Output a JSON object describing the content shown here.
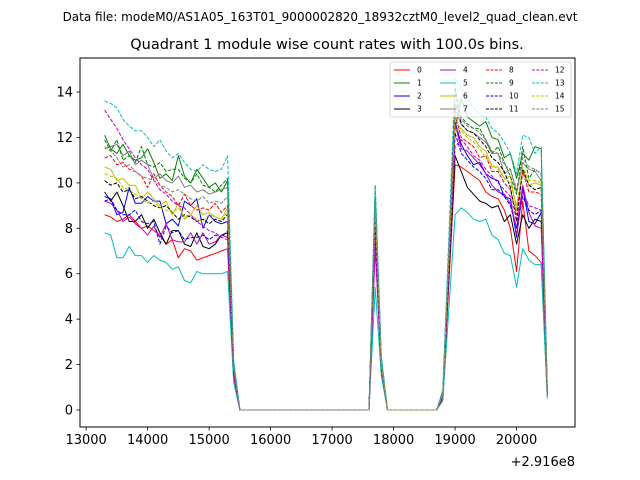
{
  "chart_data": {
    "type": "line",
    "suptitle": "Data file: modeM0/AS1A05_163T01_9000002820_18932cztM0_level2_quad_clean.evt",
    "title": "Quadrant 1 module wise count rates with 100.0s bins.",
    "xlabel": "",
    "ylabel": "",
    "offset_text": "+2.916e8",
    "xlim": [
      12900,
      20950
    ],
    "ylim": [
      -0.75,
      15.5
    ],
    "xticks": [
      13000,
      14000,
      15000,
      16000,
      17000,
      18000,
      19000,
      20000
    ],
    "xtick_labels": [
      "13000",
      "14000",
      "15000",
      "16000",
      "17000",
      "18000",
      "19000",
      "20000"
    ],
    "yticks": [
      0,
      2,
      4,
      6,
      8,
      10,
      12,
      14
    ],
    "ytick_labels": [
      "0",
      "2",
      "4",
      "6",
      "8",
      "10",
      "12",
      "14"
    ],
    "legend": {
      "location": "top-right",
      "columns": 4
    },
    "segments": [
      {
        "start": 13300,
        "n": 21
      },
      {
        "start": 15400,
        "n": 21
      },
      {
        "start": 17600,
        "n": 3
      },
      {
        "start": 17900,
        "n": 10
      },
      {
        "start": 19000,
        "n": 17
      }
    ],
    "series": [
      {
        "name": "0",
        "color": "#ff0000",
        "dash": "solid",
        "values": [
          8.6,
          8.5,
          8.3,
          8.4,
          8.6,
          8.3,
          8.0,
          8.1,
          7.9,
          7.7,
          7.3,
          7.5,
          6.7,
          7.1,
          7.0,
          6.6,
          6.7,
          6.8,
          6.9,
          7.0,
          7.1,
          1.5,
          0,
          0,
          0,
          0,
          0,
          0,
          0,
          0,
          0,
          0,
          0,
          0,
          0,
          0,
          0,
          0,
          0,
          0,
          0,
          0,
          0,
          7.6,
          1.8,
          0,
          0,
          0,
          0,
          0,
          0,
          0,
          0,
          0,
          0.5,
          10.8,
          10.7,
          10.5,
          10.3,
          10.1,
          9.6,
          9.4,
          9.3,
          8.8,
          8.0,
          6.1,
          9.2,
          7.0,
          6.8,
          6.5,
          0.6
        ]
      },
      {
        "name": "1",
        "color": "#008000",
        "dash": "solid",
        "values": [
          12.1,
          11.5,
          11.3,
          11.7,
          11.2,
          11.0,
          11.1,
          11.5,
          10.9,
          10.2,
          10.4,
          10.1,
          11.2,
          10.3,
          10.0,
          10.6,
          10.2,
          9.8,
          10.0,
          9.6,
          10.1,
          2.0,
          0,
          0,
          0,
          0,
          0,
          0,
          0,
          0,
          0,
          0,
          0,
          0,
          0,
          0,
          0,
          0,
          0,
          0,
          0,
          0,
          0,
          9.4,
          2.2,
          0,
          0,
          0,
          0,
          0,
          0,
          0,
          0,
          0,
          0.8,
          12.4,
          13.7,
          12.9,
          12.7,
          12.5,
          12.7,
          12.0,
          11.9,
          11.1,
          11.3,
          10.2,
          11.3,
          11.0,
          11.6,
          11.5,
          0.9
        ]
      },
      {
        "name": "2",
        "color": "#0000ff",
        "dash": "solid",
        "values": [
          9.4,
          9.3,
          8.6,
          8.7,
          9.8,
          9.1,
          9.1,
          9.4,
          9.2,
          9.2,
          8.2,
          8.4,
          8.1,
          9.2,
          9.0,
          9.3,
          8.0,
          8.6,
          8.3,
          8.2,
          8.3,
          1.7,
          0,
          0,
          0,
          0,
          0,
          0,
          0,
          0,
          0,
          0,
          0,
          0,
          0,
          0,
          0,
          0,
          0,
          0,
          0,
          0,
          0,
          8.4,
          2.0,
          0,
          0,
          0,
          0,
          0,
          0,
          0,
          0,
          0,
          0.6,
          12.7,
          11.7,
          11.2,
          10.8,
          10.9,
          10.4,
          10.2,
          10.1,
          9.4,
          9.3,
          7.6,
          9.8,
          8.3,
          8.2,
          8.7,
          0.8
        ]
      },
      {
        "name": "3",
        "color": "#000000",
        "dash": "solid",
        "values": [
          9.6,
          9.2,
          9.6,
          9.0,
          8.3,
          8.3,
          8.6,
          8.0,
          8.4,
          7.8,
          7.3,
          7.9,
          7.9,
          7.3,
          7.2,
          7.8,
          7.2,
          7.1,
          7.3,
          7.7,
          7.8,
          1.6,
          0,
          0,
          0,
          0,
          0,
          0,
          0,
          0,
          0,
          0,
          0,
          0,
          0,
          0,
          0,
          0,
          0,
          0,
          0,
          0,
          0,
          7.8,
          1.9,
          0,
          0,
          0,
          0,
          0,
          0,
          0,
          0,
          0,
          0.6,
          11.2,
          10.5,
          9.8,
          9.5,
          9.2,
          9.1,
          8.9,
          9.0,
          8.3,
          8.6,
          7.3,
          8.6,
          8.0,
          8.4,
          8.3,
          0.7
        ]
      },
      {
        "name": "4",
        "color": "#bf00bf",
        "dash": "solid",
        "values": [
          9.2,
          9.1,
          8.8,
          8.3,
          8.5,
          8.2,
          8.0,
          7.7,
          8.1,
          7.6,
          8.2,
          7.5,
          7.4,
          7.4,
          7.8,
          7.3,
          7.8,
          7.3,
          7.4,
          7.7,
          7.6,
          1.5,
          0,
          0,
          0,
          0,
          0,
          0,
          0,
          0,
          0,
          0,
          0,
          0,
          0,
          0,
          0,
          0,
          0,
          0,
          0,
          0,
          0,
          7.1,
          1.8,
          0,
          0,
          0,
          0,
          0,
          0,
          0,
          0,
          0,
          0.6,
          12.6,
          11.5,
          11.4,
          11.1,
          10.8,
          10.4,
          9.9,
          9.6,
          9.5,
          9.1,
          8.0,
          9.9,
          8.7,
          8.1,
          8.0,
          0.8
        ]
      },
      {
        "name": "5",
        "color": "#00bfbf",
        "dash": "solid",
        "values": [
          7.8,
          7.7,
          6.7,
          6.7,
          7.2,
          6.8,
          6.8,
          6.5,
          6.8,
          6.6,
          6.5,
          6.2,
          6.3,
          5.7,
          5.6,
          6.1,
          6.0,
          6.0,
          6.0,
          6.0,
          6.1,
          1.2,
          0,
          0,
          0,
          0,
          0,
          0,
          0,
          0,
          0,
          0,
          0,
          0,
          0,
          0,
          0,
          0,
          0,
          0,
          0,
          0,
          0,
          5.4,
          1.5,
          0,
          0,
          0,
          0,
          0,
          0,
          0,
          0,
          0,
          0.4,
          8.6,
          8.9,
          8.7,
          8.4,
          8.3,
          8.4,
          7.7,
          7.5,
          6.9,
          6.8,
          5.4,
          7.1,
          6.6,
          6.4,
          6.4,
          0.5
        ]
      },
      {
        "name": "6",
        "color": "#bfbf00",
        "dash": "solid",
        "values": [
          10.7,
          10.6,
          10.1,
          10.2,
          9.9,
          9.9,
          9.3,
          9.6,
          9.3,
          9.0,
          9.2,
          8.6,
          9.1,
          8.4,
          8.6,
          9.0,
          8.6,
          8.7,
          8.5,
          8.4,
          8.9,
          1.8,
          0,
          0,
          0,
          0,
          0,
          0,
          0,
          0,
          0,
          0,
          0,
          0,
          0,
          0,
          0,
          0,
          0,
          0,
          0,
          0,
          0,
          8.9,
          2.1,
          0,
          0,
          0,
          0,
          0,
          0,
          0,
          0,
          0,
          0.7,
          12.3,
          12.4,
          12.1,
          12.0,
          11.6,
          11.4,
          10.7,
          10.7,
          10.2,
          10.3,
          8.8,
          10.6,
          9.9,
          10.0,
          9.9,
          0.8
        ]
      },
      {
        "name": "7",
        "color": "#7f7f7f",
        "dash": "solid",
        "values": [
          11.5,
          11.6,
          11.7,
          11.2,
          11.4,
          10.8,
          11.0,
          10.8,
          10.2,
          10.4,
          10.1,
          10.0,
          10.3,
          9.8,
          9.9,
          9.6,
          9.7,
          9.5,
          9.6,
          9.7,
          9.8,
          1.9,
          0,
          0,
          0,
          0,
          0,
          0,
          0,
          0,
          0,
          0,
          0,
          0,
          0,
          0,
          0,
          0,
          0,
          0,
          0,
          0,
          0,
          9.2,
          2.1,
          0,
          0,
          0,
          0,
          0,
          0,
          0,
          0,
          0,
          0.7,
          13.2,
          12.6,
          12.3,
          12.2,
          12.0,
          11.8,
          11.3,
          11.3,
          10.4,
          10.6,
          9.6,
          10.9,
          10.6,
          10.5,
          10.1,
          0.8
        ]
      },
      {
        "name": "8",
        "color": "#ff0000",
        "dash": "dashed",
        "values": [
          11.1,
          11.2,
          10.8,
          10.9,
          10.6,
          10.5,
          10.3,
          9.8,
          10.4,
          9.9,
          9.6,
          9.4,
          9.0,
          9.5,
          9.0,
          8.8,
          8.9,
          8.8,
          9.1,
          8.7,
          9.0,
          1.8,
          0,
          0,
          0,
          0,
          0,
          0,
          0,
          0,
          0,
          0,
          0,
          0,
          0,
          0,
          0,
          0,
          0,
          0,
          0,
          0,
          0,
          8.8,
          2.1,
          0,
          0,
          0,
          0,
          0,
          0,
          0,
          0,
          0,
          0.7,
          13.0,
          12.0,
          11.8,
          11.6,
          11.1,
          11.2,
          10.5,
          10.5,
          10.0,
          9.7,
          8.6,
          10.5,
          9.6,
          9.6,
          9.5,
          0.8
        ]
      },
      {
        "name": "9",
        "color": "#008000",
        "dash": "dashed",
        "values": [
          11.9,
          11.4,
          11.9,
          11.0,
          11.2,
          10.9,
          11.6,
          10.8,
          10.7,
          10.9,
          10.5,
          10.6,
          10.6,
          10.2,
          10.0,
          10.4,
          9.9,
          9.8,
          9.6,
          9.9,
          10.2,
          2.0,
          0,
          0,
          0,
          0,
          0,
          0,
          0,
          0,
          0,
          0,
          0,
          0,
          0,
          0,
          0,
          0,
          0,
          0,
          0,
          0,
          0,
          9.9,
          2.3,
          0,
          0,
          0,
          0,
          0,
          0,
          0,
          0,
          0,
          0.8,
          13.5,
          12.9,
          12.6,
          12.4,
          12.4,
          11.9,
          11.3,
          11.6,
          10.9,
          10.3,
          9.5,
          11.6,
          10.2,
          10.6,
          10.4,
          0.9
        ]
      },
      {
        "name": "10",
        "color": "#0000ff",
        "dash": "dashed",
        "values": [
          9.2,
          9.3,
          8.8,
          8.6,
          8.6,
          8.8,
          8.3,
          8.2,
          8.3,
          7.3,
          8.1,
          7.8,
          7.9,
          7.5,
          7.6,
          7.6,
          7.7,
          7.5,
          7.7,
          7.6,
          7.9,
          1.6,
          0,
          0,
          0,
          0,
          0,
          0,
          0,
          0,
          0,
          0,
          0,
          0,
          0,
          0,
          0,
          0,
          0,
          0,
          0,
          0,
          0,
          8.1,
          1.9,
          0,
          0,
          0,
          0,
          0,
          0,
          0,
          0,
          0,
          0.6,
          12.2,
          11.3,
          11.0,
          10.7,
          10.5,
          10.2,
          9.7,
          9.7,
          9.4,
          9.0,
          8.0,
          9.4,
          8.8,
          8.6,
          8.8,
          0.8
        ]
      },
      {
        "name": "11",
        "color": "#000000",
        "dash": "dashed",
        "values": [
          10.1,
          9.9,
          10.0,
          9.6,
          9.7,
          9.3,
          9.4,
          9.2,
          9.0,
          8.9,
          9.0,
          8.7,
          8.4,
          8.6,
          8.5,
          8.3,
          8.4,
          8.2,
          8.4,
          8.3,
          8.6,
          1.7,
          0,
          0,
          0,
          0,
          0,
          0,
          0,
          0,
          0,
          0,
          0,
          0,
          0,
          0,
          0,
          0,
          0,
          0,
          0,
          0,
          0,
          8.6,
          2.0,
          0,
          0,
          0,
          0,
          0,
          0,
          0,
          0,
          0,
          0.7,
          14.2,
          12.6,
          12.3,
          12.2,
          11.9,
          11.6,
          11.1,
          10.9,
          10.5,
          9.8,
          8.3,
          10.6,
          9.9,
          9.7,
          9.8,
          0.8
        ]
      },
      {
        "name": "12",
        "color": "#bf00bf",
        "dash": "dashed",
        "values": [
          13.2,
          12.8,
          12.4,
          11.9,
          11.5,
          11.1,
          10.8,
          10.6,
          10.1,
          9.7,
          9.5,
          9.2,
          9.0,
          8.9,
          8.6,
          8.3,
          8.1,
          7.9,
          7.8,
          7.6,
          7.5,
          1.5,
          0,
          0,
          0,
          0,
          0,
          0,
          0,
          0,
          0,
          0,
          0,
          0,
          0,
          0,
          0,
          0,
          0,
          0,
          0,
          0,
          0,
          7.7,
          1.9,
          0,
          0,
          0,
          0,
          0,
          0,
          0,
          0,
          0,
          0.6,
          11.6,
          11.9,
          11.6,
          11.2,
          11.0,
          10.6,
          10.3,
          10.0,
          9.7,
          9.4,
          7.7,
          9.6,
          9.0,
          8.9,
          8.8,
          0.8
        ]
      },
      {
        "name": "13",
        "color": "#00bfbf",
        "dash": "dashed",
        "values": [
          13.6,
          13.5,
          13.3,
          12.8,
          12.5,
          12.3,
          12.3,
          12.0,
          11.6,
          11.9,
          11.4,
          11.1,
          11.3,
          10.9,
          10.6,
          10.5,
          10.8,
          10.6,
          10.5,
          10.6,
          11.2,
          2.2,
          0,
          0,
          0,
          0,
          0,
          0,
          0,
          0,
          0,
          0,
          0,
          0,
          0,
          0,
          0,
          0,
          0,
          0,
          0,
          0,
          0,
          9.9,
          2.4,
          0,
          0,
          0,
          0,
          0,
          0,
          0,
          0,
          0,
          0.9,
          14.6,
          14.2,
          13.7,
          13.3,
          13.0,
          12.9,
          12.4,
          12.2,
          11.8,
          11.3,
          10.4,
          12.1,
          12.0,
          11.3,
          11.6,
          1.0
        ]
      },
      {
        "name": "14",
        "color": "#bfbf00",
        "dash": "dashed",
        "values": [
          10.4,
          10.3,
          10.2,
          9.8,
          9.7,
          9.5,
          9.3,
          9.1,
          9.2,
          8.9,
          8.8,
          8.7,
          8.9,
          8.5,
          8.6,
          8.4,
          8.3,
          8.6,
          8.5,
          8.4,
          8.7,
          1.8,
          0,
          0,
          0,
          0,
          0,
          0,
          0,
          0,
          0,
          0,
          0,
          0,
          0,
          0,
          0,
          0,
          0,
          0,
          0,
          0,
          0,
          8.7,
          2.0,
          0,
          0,
          0,
          0,
          0,
          0,
          0,
          0,
          0,
          0.7,
          12.9,
          12.3,
          12.0,
          11.8,
          11.5,
          11.1,
          10.8,
          10.6,
          10.2,
          10.0,
          9.0,
          10.7,
          10.1,
          10.1,
          10.0,
          0.8
        ]
      },
      {
        "name": "15",
        "color": "#7f7f7f",
        "dash": "dashed",
        "values": [
          11.6,
          11.4,
          11.1,
          10.7,
          10.8,
          10.5,
          10.3,
          10.2,
          10.1,
          9.9,
          9.8,
          9.6,
          9.7,
          9.5,
          9.3,
          9.2,
          9.4,
          9.1,
          9.2,
          9.1,
          9.4,
          1.9,
          0,
          0,
          0,
          0,
          0,
          0,
          0,
          0,
          0,
          0,
          0,
          0,
          0,
          0,
          0,
          0,
          0,
          0,
          0,
          0,
          0,
          9.1,
          2.1,
          0,
          0,
          0,
          0,
          0,
          0,
          0,
          0,
          0,
          0.7,
          13.4,
          12.8,
          12.5,
          12.4,
          12.2,
          11.9,
          11.4,
          11.3,
          10.8,
          10.6,
          9.7,
          11.1,
          10.7,
          10.6,
          10.4,
          0.8
        ]
      }
    ]
  }
}
